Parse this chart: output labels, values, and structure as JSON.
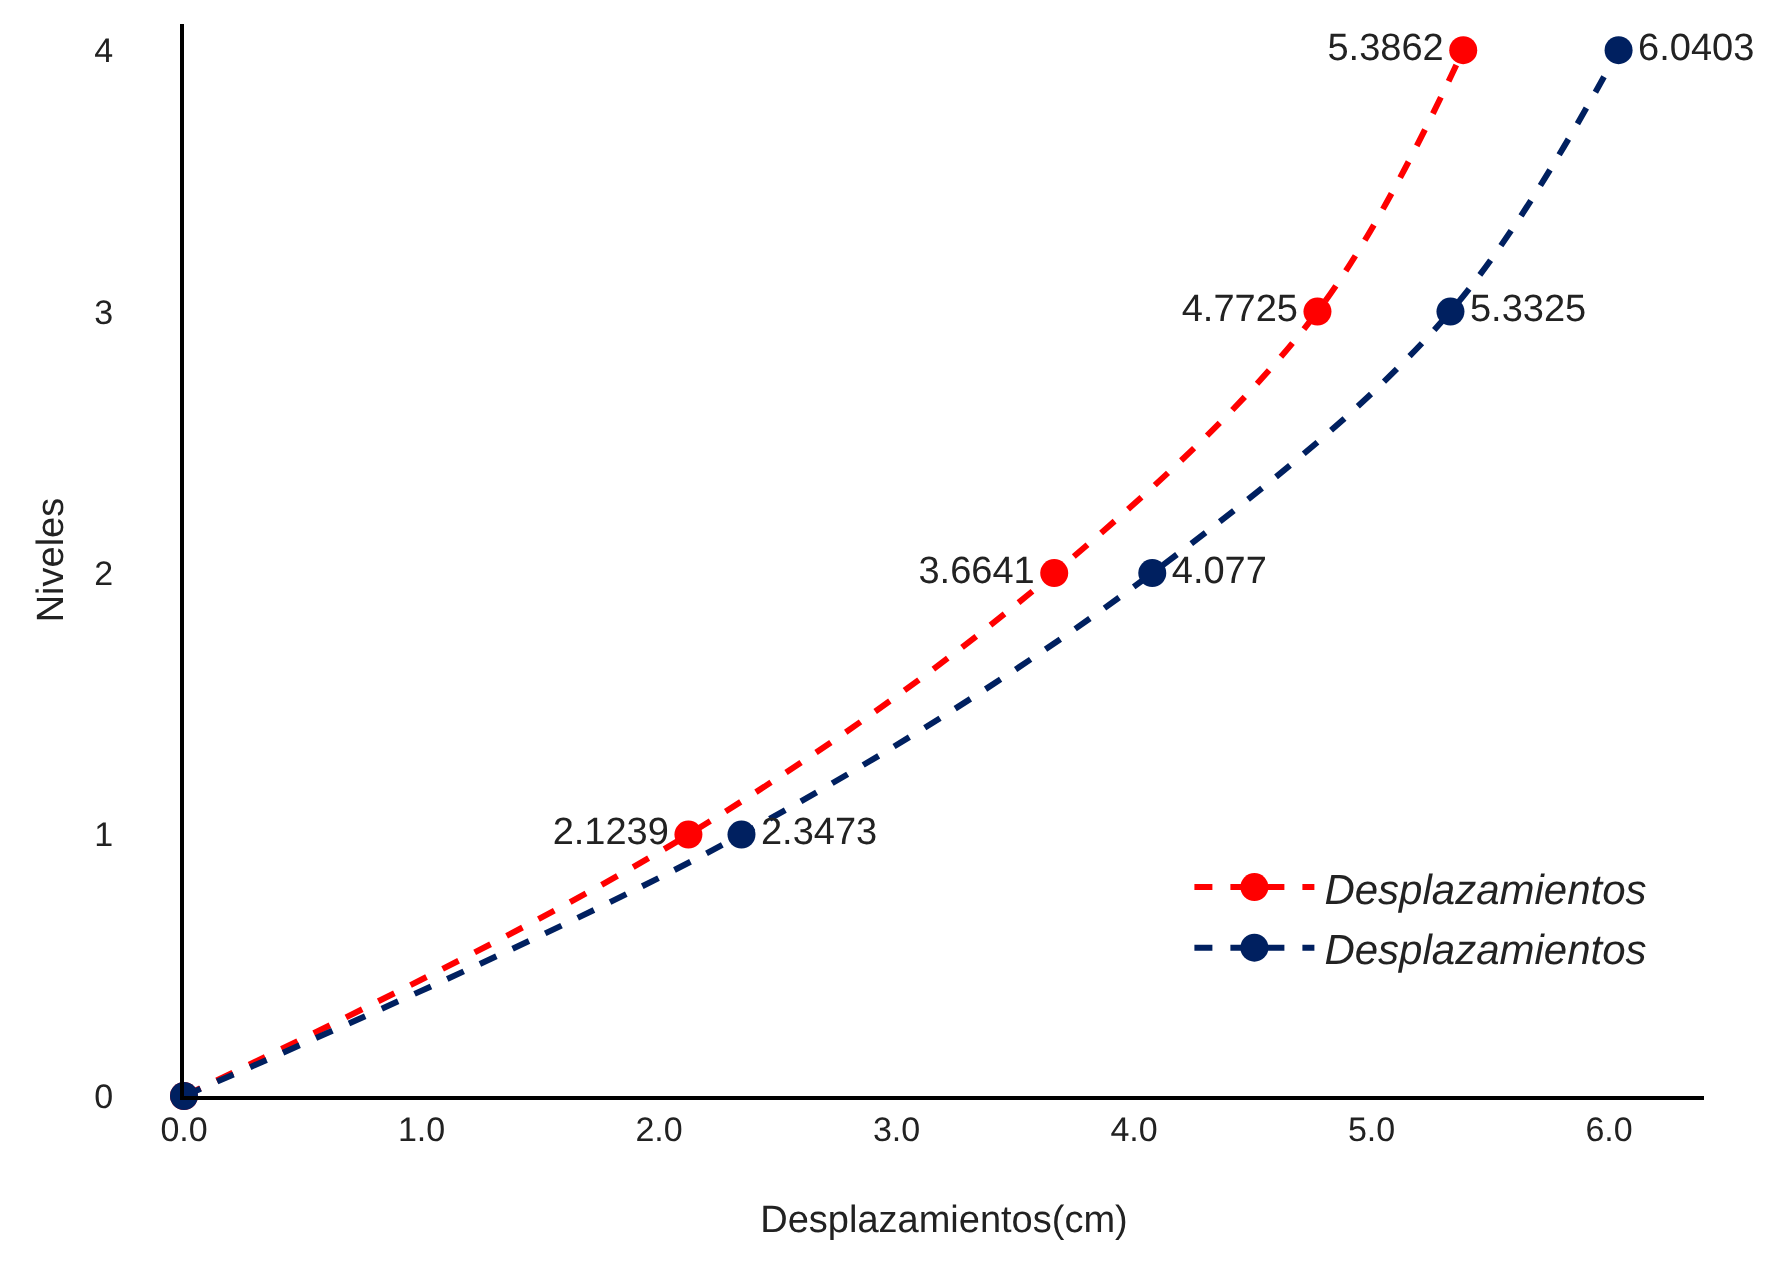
{
  "chart_data": {
    "type": "line",
    "orientation": "horizontal",
    "xlabel": "Desplazamientos(cm)",
    "ylabel": "Niveles",
    "series": [
      {
        "name": "Desplazamientos",
        "color": "#ff0000",
        "x": [
          0,
          1,
          2,
          3,
          4
        ],
        "values": [
          0,
          2.1239,
          3.6641,
          4.7725,
          5.3862
        ],
        "value_labels": [
          null,
          "2.1239",
          "3.6641",
          "4.7725",
          "5.3862"
        ]
      },
      {
        "name": "Desplazamientos",
        "color": "#002060",
        "x": [
          0,
          1,
          2,
          3,
          4
        ],
        "values": [
          0,
          2.3473,
          4.077,
          5.3325,
          6.0403
        ],
        "value_labels": [
          null,
          "2.3473",
          "4.077",
          "5.3325",
          "6.0403"
        ]
      }
    ],
    "xlim": [
      0,
      6.4
    ],
    "xticks": [
      {
        "value": 0,
        "label": "0.0"
      },
      {
        "value": 1,
        "label": "1.0"
      },
      {
        "value": 2,
        "label": "2.0"
      },
      {
        "value": 3,
        "label": "3.0"
      },
      {
        "value": 4,
        "label": "4.0"
      },
      {
        "value": 5,
        "label": "5.0"
      },
      {
        "value": 6,
        "label": "6.0"
      }
    ],
    "ylim": [
      0,
      4.1
    ],
    "yticks": [
      0,
      1,
      2,
      3,
      4
    ],
    "grid": false,
    "legend": "bottom right",
    "marker": "circle",
    "line_style": "dashed"
  }
}
